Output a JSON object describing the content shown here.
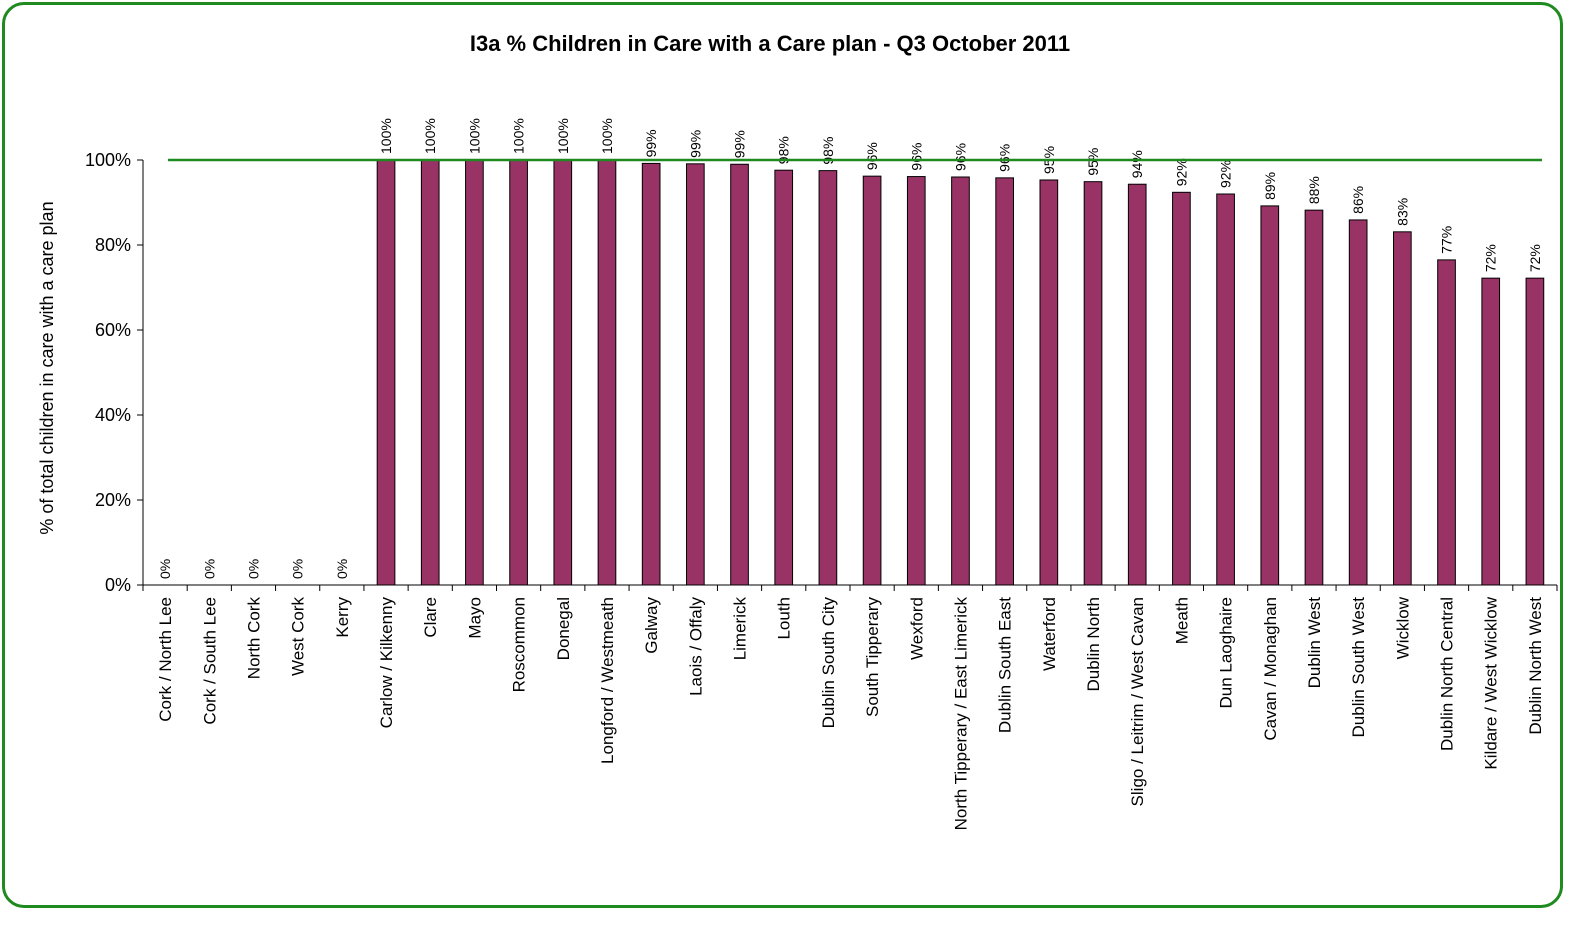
{
  "chart_data": {
    "type": "bar",
    "title": "I3a % Children in Care with a Care plan - Q3 October 2011",
    "ylabel": "% of total children in care with a care plan",
    "xlabel": "",
    "ylim": [
      0,
      100
    ],
    "yticks": [
      0,
      20,
      40,
      60,
      80,
      100
    ],
    "ytick_labels": [
      "0%",
      "20%",
      "40%",
      "60%",
      "80%",
      "100%"
    ],
    "target_line": 100,
    "grid": false,
    "colors": {
      "bar": "#993366",
      "bar_edge": "#000000",
      "target_line": "#1f8a1f",
      "frame": "#1f8a1f"
    },
    "categories": [
      "Cork / North Lee",
      "Cork / South Lee",
      "North Cork",
      "West Cork",
      "Kerry",
      "Carlow / Kilkenny",
      "Clare",
      "Mayo",
      "Roscommon",
      "Donegal",
      "Longford / Westmeath",
      "Galway",
      "Laois / Offaly",
      "Limerick",
      "Louth",
      "Dublin South City",
      "South Tipperary",
      "Wexford",
      "North Tipperary / East Limerick",
      "Dublin South East",
      "Waterford",
      "Dublin North",
      "Sligo / Leitrim / West Cavan",
      "Meath",
      "Dun Laoghaire",
      "Cavan / Monaghan",
      "Dublin West",
      "Dublin South West",
      "Wicklow",
      "Dublin North Central",
      "Kildare / West Wicklow",
      "Dublin North West"
    ],
    "values": [
      0,
      0,
      0,
      0,
      0,
      100,
      100,
      100,
      100,
      100,
      100,
      99.2,
      99.1,
      99.0,
      97.6,
      97.5,
      96.2,
      96.1,
      96.0,
      95.8,
      95.3,
      94.9,
      94.3,
      92.4,
      92.0,
      89.2,
      88.2,
      85.9,
      83.1,
      76.5,
      72.2,
      72.2
    ],
    "data_labels": [
      "0%",
      "0%",
      "0%",
      "0%",
      "0%",
      "100%",
      "100%",
      "100%",
      "100%",
      "100%",
      "100%",
      "99%",
      "99%",
      "99%",
      "98%",
      "98%",
      "96%",
      "96%",
      "96%",
      "96%",
      "95%",
      "95%",
      "94%",
      "92%",
      "92%",
      "89%",
      "88%",
      "86%",
      "83%",
      "77%",
      "72%",
      "72%"
    ]
  }
}
